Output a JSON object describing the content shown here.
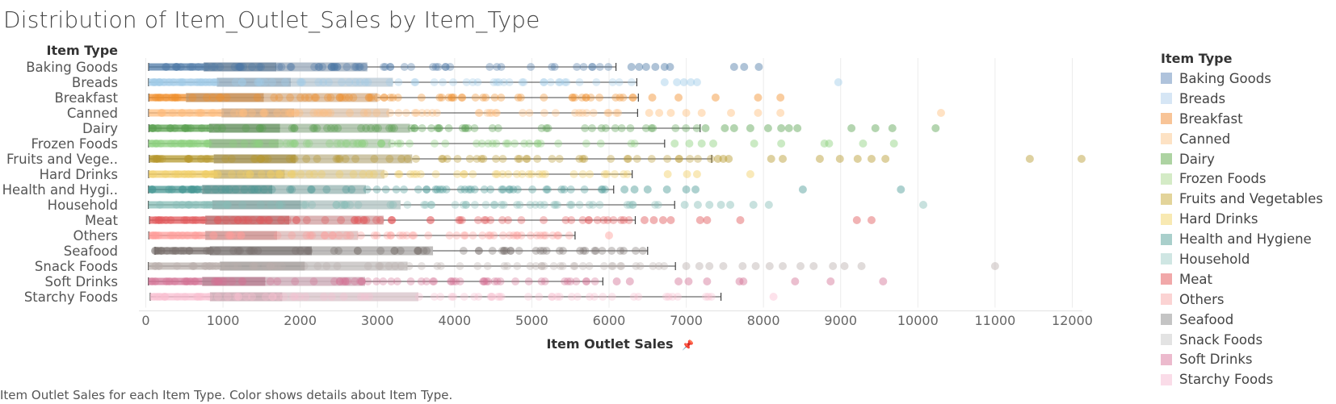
{
  "page": {
    "title": "Distribution of Item_Outlet_Sales by Item_Type",
    "footer": "Item Outlet Sales for each Item Type.  Color shows details about Item Type."
  },
  "legend": {
    "title": "Item Type",
    "items": [
      {
        "label": "Baking Goods",
        "color": "#afc3dc"
      },
      {
        "label": "Breads",
        "color": "#d6e6f5"
      },
      {
        "label": "Breakfast",
        "color": "#f8c497"
      },
      {
        "label": "Canned",
        "color": "#fde2c4"
      },
      {
        "label": "Dairy",
        "color": "#add3a2"
      },
      {
        "label": "Frozen Foods",
        "color": "#d4ebc6"
      },
      {
        "label": "Fruits and Vegetables",
        "color": "#e3d49a"
      },
      {
        "label": "Hard Drinks",
        "color": "#f8e9b2"
      },
      {
        "label": "Health and Hygiene",
        "color": "#a9cfcb"
      },
      {
        "label": "Household",
        "color": "#cfe6e3"
      },
      {
        "label": "Meat",
        "color": "#f1a8a9"
      },
      {
        "label": "Others",
        "color": "#fbd3d3"
      },
      {
        "label": "Seafood",
        "color": "#c4c4c4"
      },
      {
        "label": "Snack Foods",
        "color": "#e3e3e3"
      },
      {
        "label": "Soft Drinks",
        "color": "#ecbacd"
      },
      {
        "label": "Starchy Foods",
        "color": "#fadce8"
      }
    ]
  },
  "chart_data": {
    "type": "box",
    "title": "Distribution of Item_Outlet_Sales by Item_Type",
    "xlabel": "Item Outlet Sales",
    "ylabel": "Item Type",
    "xlim": [
      0,
      12300
    ],
    "xticks": [
      0,
      1000,
      2000,
      3000,
      4000,
      5000,
      6000,
      7000,
      8000,
      9000,
      10000,
      11000,
      12000
    ],
    "grid": true,
    "legend_position": "right",
    "series": [
      {
        "category": "Baking Goods",
        "color": "#4e79a7",
        "min": 37,
        "q1": 750,
        "median": 1690,
        "q3": 2870,
        "whisker_high": 6090,
        "outliers": [
          6290,
          6390,
          6480,
          6600,
          6720,
          6790,
          7620,
          7750,
          7940
        ]
      },
      {
        "category": "Breads",
        "color": "#a0cbe8",
        "min": 35,
        "q1": 920,
        "median": 1880,
        "q3": 3200,
        "whisker_high": 6360,
        "outliers": [
          6720,
          6880,
          6970,
          7060,
          7140,
          8970
        ]
      },
      {
        "category": "Breakfast",
        "color": "#f28e2b",
        "min": 39,
        "q1": 520,
        "median": 1530,
        "q3": 3000,
        "whisker_high": 6380,
        "outliers": [
          6560,
          6900,
          7380,
          7930,
          8220
        ]
      },
      {
        "category": "Canned",
        "color": "#ffbe7d",
        "min": 37,
        "q1": 980,
        "median": 1920,
        "q3": 3150,
        "whisker_high": 6370,
        "outliers": [
          6520,
          6650,
          6800,
          7000,
          7200,
          7580,
          7930,
          8220,
          10300
        ]
      },
      {
        "category": "Dairy",
        "color": "#59a14f",
        "min": 40,
        "q1": 820,
        "median": 1740,
        "q3": 3420,
        "whisker_high": 7180,
        "outliers": [
          7250,
          7500,
          7620,
          7830,
          8060,
          8230,
          8330,
          8440,
          9140,
          9450,
          9670,
          10230
        ]
      },
      {
        "category": "Frozen Foods",
        "color": "#8cd17d",
        "min": 36,
        "q1": 820,
        "median": 1720,
        "q3": 3170,
        "whisker_high": 6720,
        "outliers": [
          6850,
          7040,
          7200,
          7350,
          7880,
          8230,
          8790,
          8850,
          9290,
          9690
        ]
      },
      {
        "category": "Fruits and Vegetables",
        "color": "#b6992d",
        "min": 45,
        "q1": 880,
        "median": 1940,
        "q3": 3450,
        "whisker_high": 7330,
        "outliers": [
          7410,
          7480,
          7550,
          8100,
          8250,
          8730,
          8990,
          9220,
          9400,
          9580,
          11450,
          12120
        ]
      },
      {
        "category": "Hard Drinks",
        "color": "#f1ce63",
        "min": 37,
        "q1": 880,
        "median": 1800,
        "q3": 3090,
        "whisker_high": 6300,
        "outliers": [
          6760,
          7010,
          7140,
          7830
        ]
      },
      {
        "category": "Health and Hygiene",
        "color": "#499894",
        "min": 35,
        "q1": 730,
        "median": 1640,
        "q3": 2850,
        "whisker_high": 6060,
        "outliers": [
          6200,
          6330,
          6500,
          6750,
          7000,
          7120,
          8510,
          9780
        ]
      },
      {
        "category": "Household",
        "color": "#86bcb6",
        "min": 33,
        "q1": 860,
        "median": 2010,
        "q3": 3300,
        "whisker_high": 6850,
        "outliers": [
          6980,
          7150,
          7300,
          7450,
          7570,
          7870,
          8070,
          10070
        ]
      },
      {
        "category": "Meat",
        "color": "#e15759",
        "min": 48,
        "q1": 770,
        "median": 1860,
        "q3": 3080,
        "whisker_high": 6340,
        "outliers": [
          6460,
          6580,
          6700,
          6800,
          7180,
          7270,
          7700,
          9210,
          9400
        ]
      },
      {
        "category": "Others",
        "color": "#ff9d9a",
        "min": 39,
        "q1": 770,
        "median": 1700,
        "q3": 2750,
        "whisker_high": 5560,
        "outliers": [
          6000
        ]
      },
      {
        "category": "Seafood",
        "color": "#79706e",
        "min": 120,
        "q1": 830,
        "median": 2150,
        "q3": 3720,
        "whisker_high": 6500,
        "outliers": []
      },
      {
        "category": "Snack Foods",
        "color": "#bab0ac",
        "min": 33,
        "q1": 960,
        "median": 2060,
        "q3": 3390,
        "whisker_high": 6860,
        "outliers": [
          7000,
          7170,
          7300,
          7480,
          7730,
          7900,
          8080,
          8250,
          8480,
          8650,
          8900,
          9050,
          9270,
          11000
        ]
      },
      {
        "category": "Soft Drinks",
        "color": "#d37295",
        "min": 34,
        "q1": 730,
        "median": 1550,
        "q3": 2840,
        "whisker_high": 5920,
        "outliers": [
          6100,
          6270,
          6900,
          7030,
          7270,
          7690,
          7740,
          8410,
          8870,
          9550
        ]
      },
      {
        "category": "Starchy Foods",
        "color": "#fabfd2",
        "min": 58,
        "q1": 830,
        "median": 1770,
        "q3": 3530,
        "whisker_high": 7450,
        "outliers": [
          8130
        ]
      }
    ]
  }
}
